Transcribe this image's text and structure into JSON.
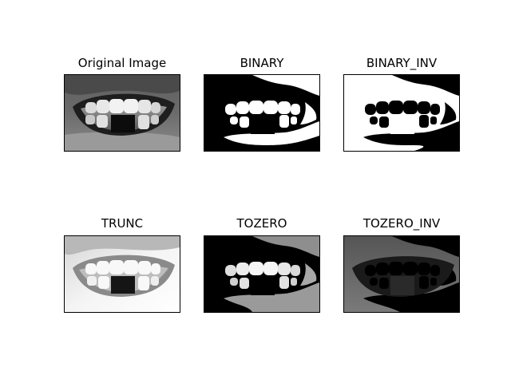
{
  "figure": {
    "panels": [
      {
        "title": "Original Image",
        "mode": "original"
      },
      {
        "title": "BINARY",
        "mode": "binary"
      },
      {
        "title": "BINARY_INV",
        "mode": "binary_inv"
      },
      {
        "title": "TRUNC",
        "mode": "trunc"
      },
      {
        "title": "TOZERO",
        "mode": "tozero"
      },
      {
        "title": "TOZERO_INV",
        "mode": "tozero_inv"
      }
    ]
  }
}
